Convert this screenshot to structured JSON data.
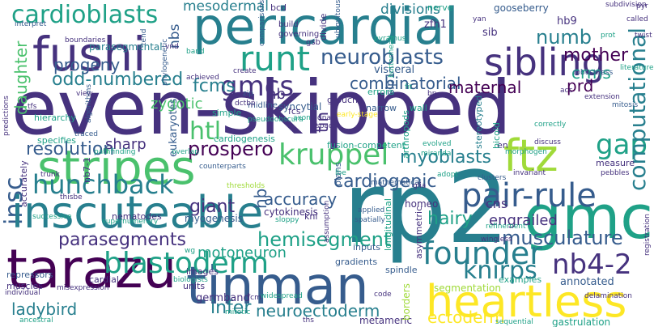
{
  "palette": {
    "deep_purple": "#440154",
    "indigo": "#46327e",
    "slate_blue": "#365c8d",
    "steel": "#277f8e",
    "teal": "#1fa187",
    "green": "#4ac16d",
    "lime": "#a0da39",
    "yellow": "#fde725"
  },
  "words": [
    {
      "text": "even-skipped",
      "color": "indigo"
    },
    {
      "text": "rp2",
      "color": "steel"
    },
    {
      "text": "pericardial",
      "color": "steel"
    },
    {
      "text": "insc",
      "color": "slate_blue"
    },
    {
      "text": "tinman",
      "color": "slate_blue"
    },
    {
      "text": "inscuteable",
      "color": "steel"
    },
    {
      "text": "tarazu",
      "color": "deep_purple"
    },
    {
      "text": "gmc",
      "color": "teal"
    },
    {
      "text": "stripes",
      "color": "green"
    },
    {
      "text": "fushi",
      "color": "indigo"
    },
    {
      "text": "heartless",
      "color": "yellow"
    },
    {
      "text": "sibling",
      "color": "indigo"
    },
    {
      "text": "runt",
      "color": "teal"
    },
    {
      "text": "ftz",
      "color": "lime"
    },
    {
      "text": "kruppel",
      "color": "green"
    },
    {
      "text": "pair-rule",
      "color": "slate_blue"
    },
    {
      "text": "cardioblasts",
      "color": "teal"
    },
    {
      "text": "founder",
      "color": "steel"
    },
    {
      "text": "hunchback",
      "color": "steel"
    },
    {
      "text": "blastoderm",
      "color": "teal"
    },
    {
      "text": "nb4-2",
      "color": "indigo"
    },
    {
      "text": "knirps",
      "color": "steel"
    },
    {
      "text": "neuroblasts",
      "color": "slate_blue"
    },
    {
      "text": "gmcs",
      "color": "indigo"
    },
    {
      "text": "htl",
      "color": "green"
    },
    {
      "text": "numb",
      "color": "steel"
    },
    {
      "text": "gap",
      "color": "teal"
    },
    {
      "text": "computational",
      "color": "steel"
    },
    {
      "text": "parasegments",
      "color": "indigo"
    },
    {
      "text": "hemisegment",
      "color": "teal"
    },
    {
      "text": "myoblasts",
      "color": "steel"
    },
    {
      "text": "musculature",
      "color": "slate_blue"
    },
    {
      "text": "cardiogenic",
      "color": "slate_blue"
    },
    {
      "text": "accuracy",
      "color": "slate_blue"
    },
    {
      "text": "neuroectoderm",
      "color": "steel"
    },
    {
      "text": "odd-numbered",
      "color": "steel"
    },
    {
      "text": "mother",
      "color": "deep_purple"
    },
    {
      "text": "combinatorial",
      "color": "slate_blue"
    },
    {
      "text": "prospero",
      "color": "deep_purple"
    },
    {
      "text": "resolution",
      "color": "slate_blue"
    },
    {
      "text": "ladybird",
      "color": "steel"
    },
    {
      "text": "ectoderm",
      "color": "yellow"
    },
    {
      "text": "infer",
      "color": "steel"
    },
    {
      "text": "giant",
      "color": "indigo"
    },
    {
      "text": "hairy",
      "color": "teal"
    },
    {
      "text": "fcms",
      "color": "steel"
    },
    {
      "text": "crms",
      "color": "teal"
    },
    {
      "text": "prd",
      "color": "deep_purple"
    },
    {
      "text": "daughter",
      "color": "green"
    },
    {
      "text": "progeny",
      "color": "slate_blue"
    },
    {
      "text": "maternal",
      "color": "deep_purple"
    },
    {
      "text": "engrailed",
      "color": "indigo"
    },
    {
      "text": "motoneuron",
      "color": "teal"
    },
    {
      "text": "zygotic",
      "color": "green"
    },
    {
      "text": "sharp",
      "color": "indigo"
    },
    {
      "text": "mesodermal",
      "color": "steel"
    },
    {
      "text": "divisions",
      "color": "steel"
    },
    {
      "text": "nb",
      "color": "indigo"
    },
    {
      "text": "hb",
      "color": "slate_blue"
    },
    {
      "text": "tin",
      "color": "indigo"
    },
    {
      "text": "slp1",
      "color": "slate_blue"
    },
    {
      "text": "nbs",
      "color": "slate_blue"
    },
    {
      "text": "germband",
      "color": "indigo"
    },
    {
      "text": "annotated",
      "color": "slate_blue"
    },
    {
      "text": "segmentation",
      "color": "lime"
    },
    {
      "text": "cns",
      "color": "indigo"
    },
    {
      "text": "visceral",
      "color": "slate_blue"
    },
    {
      "text": "sib",
      "color": "indigo"
    },
    {
      "text": "hb9",
      "color": "indigo"
    },
    {
      "text": "zfh1",
      "color": "indigo"
    },
    {
      "text": "gooseberry",
      "color": "slate_blue"
    },
    {
      "text": "parasegmental",
      "color": "steel"
    },
    {
      "text": "syncytial",
      "color": "slate_blue"
    },
    {
      "text": "bcd",
      "color": "indigo"
    },
    {
      "text": "nerve",
      "color": "teal"
    },
    {
      "text": "eukaryotes",
      "color": "slate_blue"
    },
    {
      "text": "cytokinesis",
      "color": "indigo"
    },
    {
      "text": "myogenesis",
      "color": "slate_blue"
    },
    {
      "text": "metameric",
      "color": "indigo"
    },
    {
      "text": "gastrulation",
      "color": "teal"
    },
    {
      "text": "cardial",
      "color": "indigo"
    },
    {
      "text": "muscles",
      "color": "indigo"
    },
    {
      "text": "repressors",
      "color": "slate_blue"
    },
    {
      "text": "nematodes",
      "color": "indigo"
    },
    {
      "text": "homeo",
      "color": "indigo"
    },
    {
      "text": "spindle",
      "color": "slate_blue"
    },
    {
      "text": "gradients",
      "color": "slate_blue"
    },
    {
      "text": "units",
      "color": "indigo"
    },
    {
      "text": "images",
      "color": "indigo"
    },
    {
      "text": "specifies",
      "color": "teal"
    },
    {
      "text": "hierarchy",
      "color": "teal"
    },
    {
      "text": "cardiogenesis",
      "color": "teal"
    },
    {
      "text": "fusion-competent",
      "color": "teal"
    },
    {
      "text": "narrow",
      "color": "slate_blue"
    },
    {
      "text": "wall",
      "color": "teal"
    },
    {
      "text": "groucho",
      "color": "indigo"
    },
    {
      "text": "errors",
      "color": "teal"
    },
    {
      "text": "fcs",
      "color": "indigo"
    },
    {
      "text": "simple",
      "color": "teal"
    },
    {
      "text": "inputs",
      "color": "slate_blue"
    },
    {
      "text": "kni",
      "color": "indigo"
    },
    {
      "text": "measure",
      "color": "indigo"
    },
    {
      "text": "examples",
      "color": "teal"
    },
    {
      "text": "asymmetric",
      "color": "indigo"
    },
    {
      "text": "stereotyped",
      "color": "steel"
    },
    {
      "text": "arthropods",
      "color": "teal"
    },
    {
      "text": "en",
      "color": "indigo"
    },
    {
      "text": "longitudinal",
      "color": "teal"
    },
    {
      "text": "bicoid",
      "color": "teal"
    },
    {
      "text": "mathematical",
      "color": "slate_blue"
    },
    {
      "text": "plans",
      "color": "slate_blue"
    },
    {
      "text": "accurately",
      "color": "indigo"
    },
    {
      "text": "divide",
      "color": "indigo"
    },
    {
      "text": "build",
      "color": "indigo"
    },
    {
      "text": "governing",
      "color": "indigo"
    },
    {
      "text": "gsb",
      "color": "indigo"
    },
    {
      "text": "midline",
      "color": "slate_blue"
    },
    {
      "text": "subdivision",
      "color": "indigo"
    },
    {
      "text": "robustness",
      "color": "slate_blue"
    },
    {
      "text": "called",
      "color": "indigo"
    },
    {
      "text": "literature",
      "color": "teal"
    },
    {
      "text": "mitosis",
      "color": "slate_blue"
    },
    {
      "text": "extension",
      "color": "indigo"
    },
    {
      "text": "pyr",
      "color": "indigo"
    },
    {
      "text": "twist",
      "color": "indigo"
    },
    {
      "text": "prot",
      "color": "teal"
    },
    {
      "text": "correctly",
      "color": "teal"
    },
    {
      "text": "discuss",
      "color": "indigo"
    },
    {
      "text": "morphogen",
      "color": "teal"
    },
    {
      "text": "clusters",
      "color": "slate_blue"
    },
    {
      "text": "pebbles",
      "color": "indigo"
    },
    {
      "text": "invariant",
      "color": "indigo"
    },
    {
      "text": "wingless",
      "color": "indigo"
    },
    {
      "text": "refinement",
      "color": "teal"
    },
    {
      "text": "delamination",
      "color": "indigo"
    },
    {
      "text": "applied",
      "color": "slate_blue"
    },
    {
      "text": "spatially",
      "color": "slate_blue"
    },
    {
      "text": "glia",
      "color": "indigo"
    },
    {
      "text": "code",
      "color": "indigo"
    },
    {
      "text": "widespread",
      "color": "teal"
    },
    {
      "text": "sequential",
      "color": "teal"
    },
    {
      "text": "ths",
      "color": "indigo"
    },
    {
      "text": "biologists",
      "color": "teal"
    },
    {
      "text": "mitotic",
      "color": "teal"
    },
    {
      "text": "fcm",
      "color": "indigo"
    },
    {
      "text": "misexpression",
      "color": "indigo"
    },
    {
      "text": "individual",
      "color": "indigo"
    },
    {
      "text": "ancestral",
      "color": "teal"
    },
    {
      "text": "interpret",
      "color": "slate_blue"
    },
    {
      "text": "boundaries",
      "color": "indigo"
    },
    {
      "text": "predictions",
      "color": "indigo"
    },
    {
      "text": "tfs",
      "color": "indigo"
    },
    {
      "text": "view",
      "color": "indigo"
    },
    {
      "text": "traced",
      "color": "slate_blue"
    },
    {
      "text": "pathfinding",
      "color": "teal"
    },
    {
      "text": "trunk",
      "color": "indigo"
    },
    {
      "text": "thisbe",
      "color": "indigo"
    },
    {
      "text": "successive",
      "color": "teal"
    },
    {
      "text": "overlap",
      "color": "teal"
    },
    {
      "text": "thresholds",
      "color": "lime"
    },
    {
      "text": "nb7-1",
      "color": "indigo"
    },
    {
      "text": "sloppy",
      "color": "teal"
    },
    {
      "text": "counterparts",
      "color": "slate_blue"
    },
    {
      "text": "supernumerary",
      "color": "teal"
    },
    {
      "text": "algorithms",
      "color": "slate_blue"
    },
    {
      "text": "achieved",
      "color": "indigo"
    },
    {
      "text": "create",
      "color": "indigo"
    },
    {
      "text": "dctbp",
      "color": "indigo"
    },
    {
      "text": "pseudoobscura",
      "color": "teal"
    },
    {
      "text": "dnas",
      "color": "indigo"
    },
    {
      "text": "space",
      "color": "indigo"
    },
    {
      "text": "evolved",
      "color": "teal"
    },
    {
      "text": "adopt",
      "color": "teal"
    },
    {
      "text": "miranda",
      "color": "teal"
    },
    {
      "text": "lbe",
      "color": "teal"
    },
    {
      "text": "yan",
      "color": "indigo"
    },
    {
      "text": "band",
      "color": "teal"
    },
    {
      "text": "phylogenetic",
      "color": "slate_blue"
    },
    {
      "text": "ubiquitous",
      "color": "slate_blue"
    },
    {
      "text": "pyramus",
      "color": "teal"
    },
    {
      "text": "buttonhead",
      "color": "teal"
    },
    {
      "text": "comparisons",
      "color": "slate_blue"
    },
    {
      "text": "vnd",
      "color": "indigo"
    },
    {
      "text": "tend",
      "color": "slate_blue"
    },
    {
      "text": "acc",
      "color": "indigo"
    },
    {
      "text": "bp",
      "color": "indigo"
    },
    {
      "text": "fit",
      "color": "teal"
    },
    {
      "text": "early-stage",
      "color": "yellow"
    },
    {
      "text": "axon",
      "color": "teal"
    },
    {
      "text": "wg",
      "color": "teal"
    },
    {
      "text": "registration",
      "color": "indigo"
    },
    {
      "text": "assumption",
      "color": "indigo"
    },
    {
      "text": "borders",
      "color": "lime"
    },
    {
      "text": "zip",
      "color": "slate_blue"
    }
  ]
}
